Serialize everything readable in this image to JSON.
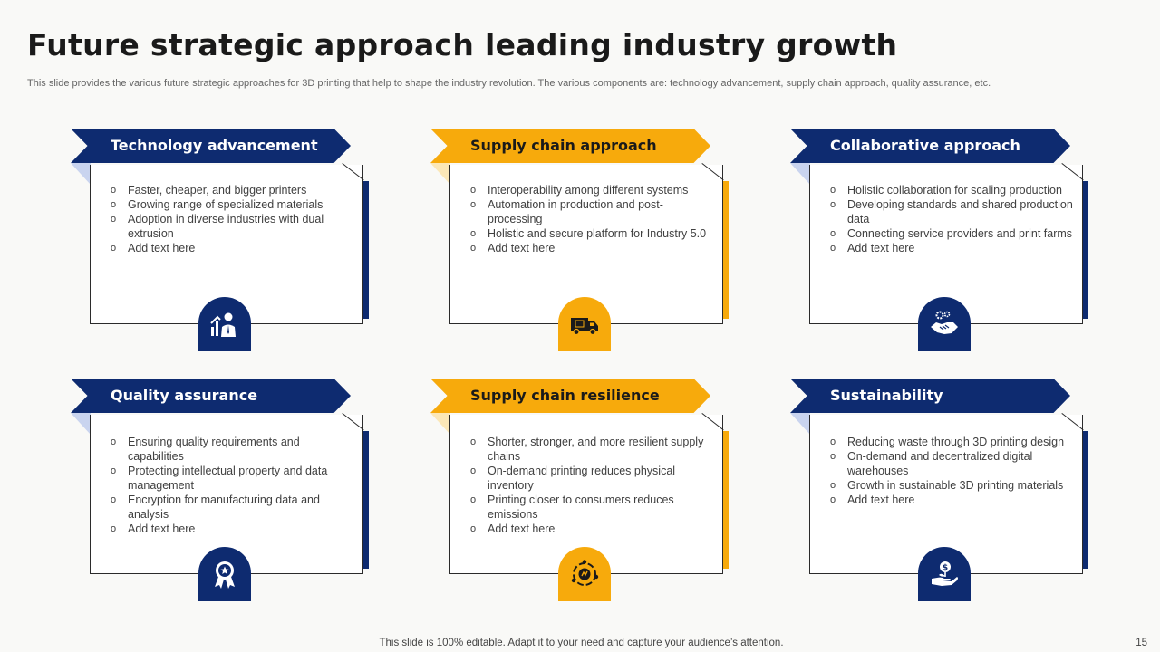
{
  "slide": {
    "title": "Future strategic approach leading industry growth",
    "subtitle": "This slide provides the various future strategic approaches for 3D printing that help to  shape the industry revolution. The various components are: technology advancement, supply chain approach, quality assurance, etc.",
    "footer": "This slide is 100% editable. Adapt it to your need and capture your audience’s attention.",
    "page_number": "15"
  },
  "colors": {
    "navy": "#0e2b70",
    "gold": "#f7aa0c"
  },
  "cards": [
    {
      "heading": "Technology advancement",
      "theme": "blue",
      "icon": "growth-person-icon",
      "items": [
        "Faster, cheaper, and bigger printers",
        "Growing range of specialized materials",
        "Adoption in diverse industries with dual extrusion",
        "Add text here"
      ]
    },
    {
      "heading": "Supply chain approach",
      "theme": "gold",
      "icon": "delivery-truck-icon",
      "items": [
        "Interoperability among different  systems",
        "Automation in production and post-processing",
        "Holistic and secure platform for Industry 5.0",
        "Add text here"
      ]
    },
    {
      "heading": "Collaborative approach",
      "theme": "blue",
      "icon": "handshake-gear-icon",
      "items": [
        "Holistic collaboration for scaling production",
        "Developing  standards and shared production data",
        "Connecting service providers  and print farms",
        "Add text here"
      ]
    },
    {
      "heading": "Quality assurance",
      "theme": "blue",
      "icon": "quality-badge-icon",
      "items": [
        "Ensuring quality requirements and capabilities",
        "Protecting intellectual property and data management",
        "Encryption for manufacturing data and analysis",
        "Add text here"
      ]
    },
    {
      "heading": "Supply chain resilience",
      "theme": "gold",
      "icon": "resilience-cycle-icon",
      "items": [
        "Shorter, stronger, and more resilient supply chains",
        "On-demand printing reduces physical inventory",
        "Printing closer to consumers reduces emissions",
        "Add text here"
      ]
    },
    {
      "heading": "Sustainability",
      "theme": "blue",
      "icon": "hand-plant-icon",
      "items": [
        "Reducing waste through 3D printing design",
        "On-demand and decentralized digital warehouses",
        "Growth in sustainable 3D printing materials",
        "Add text here"
      ]
    }
  ]
}
